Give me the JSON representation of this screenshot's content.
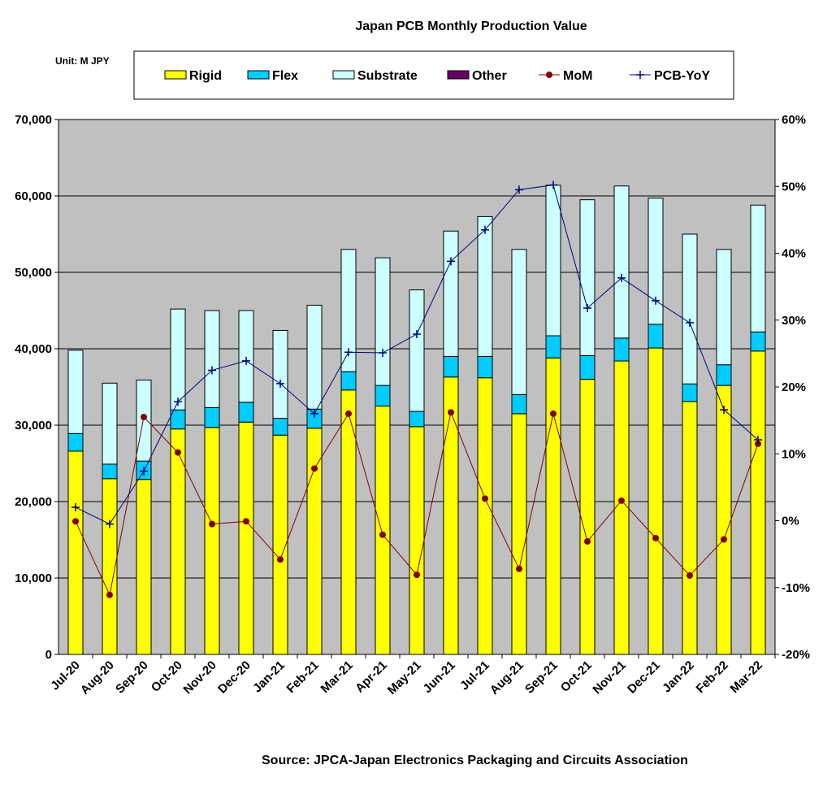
{
  "chart_data": {
    "type": "bar",
    "stacked": true,
    "title": "Japan PCB Monthly Production Value",
    "unit_label": "Unit: M JPY",
    "source": "Source: JPCA-Japan Electronics Packaging and Circuits Association",
    "categories": [
      "Jul-20",
      "Aug-20",
      "Sep-20",
      "Oct-20",
      "Nov-20",
      "Dec-20",
      "Jan-21",
      "Feb-21",
      "Mar-21",
      "Apr-21",
      "May-21",
      "Jun-21",
      "Jul-21",
      "Aug-21",
      "Sep-21",
      "Oct-21",
      "Nov-21",
      "Dec-21",
      "Jan-22",
      "Feb-22",
      "Mar-22"
    ],
    "y_left": {
      "min": 0,
      "max": 70000,
      "step": 10000,
      "ticks": [
        "0",
        "10,000",
        "20,000",
        "30,000",
        "40,000",
        "50,000",
        "60,000",
        "70,000"
      ]
    },
    "y_right": {
      "min": -20,
      "max": 60,
      "step": 10,
      "unit": "%",
      "ticks": [
        "-20%",
        "-10%",
        "0%",
        "10%",
        "20%",
        "30%",
        "40%",
        "50%",
        "60%"
      ]
    },
    "grid": true,
    "legend_placement": "top",
    "plot_background": "#C0C0C0",
    "series": [
      {
        "name": "Rigid",
        "kind": "bar",
        "axis": "left",
        "color": "#FFFF00",
        "values": [
          26600,
          23000,
          22900,
          29500,
          29700,
          30400,
          28700,
          29600,
          34600,
          32500,
          29800,
          36300,
          36200,
          31500,
          38800,
          36000,
          38400,
          40100,
          33100,
          35200,
          39700
        ]
      },
      {
        "name": "Flex",
        "kind": "bar",
        "axis": "left",
        "color": "#00CCFF",
        "values": [
          2300,
          1900,
          2400,
          2500,
          2600,
          2600,
          2200,
          2500,
          2400,
          2700,
          2000,
          2700,
          2800,
          2500,
          2900,
          3100,
          3000,
          3100,
          2300,
          2700,
          2500
        ]
      },
      {
        "name": "Substrate",
        "kind": "bar",
        "axis": "left",
        "color": "#CCFFFF",
        "values": [
          10900,
          10600,
          10600,
          13200,
          12700,
          12000,
          11500,
          13600,
          16000,
          16700,
          15900,
          16400,
          18300,
          19000,
          19700,
          20400,
          19900,
          16500,
          19600,
          15100,
          16600
        ]
      },
      {
        "name": "Other",
        "kind": "bar",
        "axis": "left",
        "color": "#660066",
        "values": [
          0,
          0,
          0,
          0,
          0,
          0,
          0,
          0,
          0,
          0,
          0,
          0,
          0,
          0,
          0,
          0,
          0,
          0,
          0,
          0,
          0
        ]
      },
      {
        "name": "MoM",
        "kind": "line",
        "axis": "right",
        "color": "#800000",
        "marker": "circle",
        "values": [
          -0.1,
          -11.1,
          15.5,
          10.2,
          -0.5,
          -0.1,
          -5.8,
          7.8,
          16.0,
          -2.1,
          -8.1,
          16.2,
          3.3,
          -7.2,
          16.0,
          -3.1,
          3.0,
          -2.6,
          -8.2,
          -2.8,
          11.5
        ]
      },
      {
        "name": "PCB-YoY",
        "kind": "line",
        "axis": "right",
        "color": "#000080",
        "marker": "plus",
        "values": [
          2.0,
          -0.5,
          7.4,
          17.8,
          22.5,
          23.9,
          20.5,
          16.0,
          25.2,
          25.1,
          27.9,
          38.8,
          43.5,
          49.5,
          50.2,
          31.8,
          36.3,
          32.9,
          29.6,
          16.6,
          12.1
        ]
      }
    ]
  }
}
